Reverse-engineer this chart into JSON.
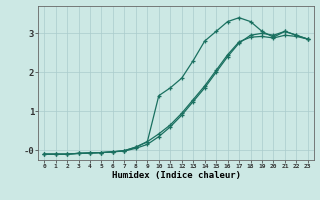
{
  "xlabel": "Humidex (Indice chaleur)",
  "bg_color": "#cce8e4",
  "line_color": "#1a7060",
  "grid_color": "#aacccc",
  "xlim": [
    -0.5,
    23.5
  ],
  "ylim": [
    -0.25,
    3.7
  ],
  "xticks": [
    0,
    1,
    2,
    3,
    4,
    5,
    6,
    7,
    8,
    9,
    10,
    11,
    12,
    13,
    14,
    15,
    16,
    17,
    18,
    19,
    20,
    21,
    22,
    23
  ],
  "yticks": [
    0,
    1,
    2,
    3
  ],
  "ytick_labels": [
    "-0",
    "1",
    "2",
    "3"
  ],
  "curve1_x": [
    0,
    1,
    2,
    3,
    4,
    5,
    6,
    7,
    8,
    9,
    10,
    11,
    12,
    13,
    14,
    15,
    16,
    17,
    18,
    19,
    20,
    21,
    22,
    23
  ],
  "curve1_y": [
    -0.1,
    -0.1,
    -0.1,
    -0.08,
    -0.07,
    -0.06,
    -0.04,
    -0.02,
    0.05,
    0.15,
    0.35,
    0.6,
    0.9,
    1.25,
    1.6,
    2.0,
    2.4,
    2.75,
    2.95,
    3.0,
    2.95,
    3.05,
    2.95,
    2.85
  ],
  "curve2_x": [
    0,
    1,
    2,
    3,
    4,
    5,
    6,
    7,
    8,
    9,
    10,
    11,
    12,
    13,
    14,
    15,
    16,
    17,
    18,
    19,
    20,
    21,
    22,
    23
  ],
  "curve2_y": [
    -0.1,
    -0.1,
    -0.1,
    -0.08,
    -0.07,
    -0.06,
    -0.04,
    -0.01,
    0.08,
    0.22,
    1.4,
    1.6,
    1.85,
    2.3,
    2.8,
    3.05,
    3.3,
    3.4,
    3.3,
    3.05,
    2.9,
    3.05,
    2.95,
    2.85
  ],
  "curve3_x": [
    0,
    1,
    2,
    3,
    4,
    5,
    6,
    7,
    8,
    9,
    10,
    11,
    12,
    13,
    14,
    15,
    16,
    17,
    18,
    19,
    20,
    21,
    22,
    23
  ],
  "curve3_y": [
    -0.1,
    -0.1,
    -0.1,
    -0.08,
    -0.07,
    -0.06,
    -0.04,
    -0.01,
    0.08,
    0.22,
    0.42,
    0.65,
    0.95,
    1.3,
    1.65,
    2.05,
    2.45,
    2.78,
    2.9,
    2.92,
    2.88,
    2.95,
    2.92,
    2.85
  ]
}
